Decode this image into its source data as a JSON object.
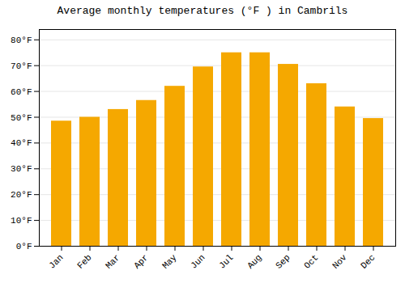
{
  "chart_data": {
    "type": "bar",
    "title": "Average monthly temperatures (°F ) in Cambrils",
    "categories": [
      "Jan",
      "Feb",
      "Mar",
      "Apr",
      "May",
      "Jun",
      "Jul",
      "Aug",
      "Sep",
      "Oct",
      "Nov",
      "Dec"
    ],
    "values": [
      48.5,
      50.0,
      53.0,
      56.5,
      62.0,
      69.5,
      75.0,
      75.0,
      70.5,
      63.0,
      54.0,
      49.5
    ],
    "color": "#F5A800",
    "ylim": [
      0,
      84
    ],
    "yticks": [
      {
        "value": 0,
        "label": "0°F"
      },
      {
        "value": 10,
        "label": "10°F"
      },
      {
        "value": 20,
        "label": "20°F"
      },
      {
        "value": 30,
        "label": "30°F"
      },
      {
        "value": 40,
        "label": "40°F"
      },
      {
        "value": 50,
        "label": "50°F"
      },
      {
        "value": 60,
        "label": "60°F"
      },
      {
        "value": 70,
        "label": "70°F"
      },
      {
        "value": 80,
        "label": "80°F"
      }
    ],
    "grid": true
  }
}
